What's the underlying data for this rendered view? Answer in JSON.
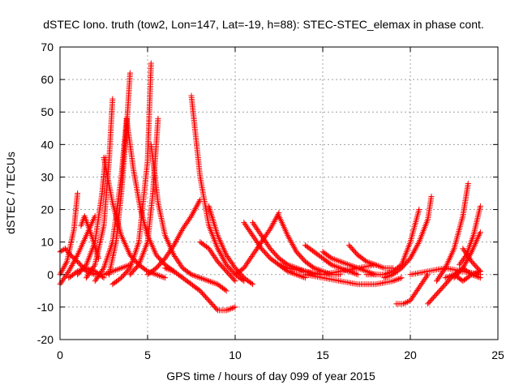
{
  "chart_data": {
    "type": "scatter",
    "title": "dSTEC Iono. truth (tow2, Lon=147, Lat=-19, h=88): STEC-STEC_elemax in phase cont.",
    "xlabel": "GPS time / hours of day 099 of year 2015",
    "ylabel": "dSTEC  / TECUs",
    "xlim": [
      0,
      25
    ],
    "ylim": [
      -20,
      70
    ],
    "xticks": [
      0,
      5,
      10,
      15,
      20,
      25
    ],
    "yticks": [
      -20,
      -10,
      0,
      10,
      20,
      30,
      40,
      50,
      60,
      70
    ],
    "grid": true,
    "legend": "none",
    "marker": "plus",
    "color": "#ff0000",
    "series": [
      {
        "x": [
          0.0,
          0.4,
          0.8,
          1.0
        ],
        "y": [
          0,
          4,
          14,
          25
        ]
      },
      {
        "x": [
          0.0,
          0.3,
          0.6,
          1.0,
          1.5,
          2.0,
          2.5,
          3.0,
          3.5,
          4.0
        ],
        "y": [
          7,
          8,
          6,
          4,
          1,
          0,
          0,
          1,
          2,
          3
        ]
      },
      {
        "x": [
          0.0,
          0.5,
          1.0,
          1.5,
          2.0
        ],
        "y": [
          -3,
          1,
          6,
          12,
          18
        ]
      },
      {
        "x": [
          0.5,
          1.0,
          1.5,
          2.0,
          2.5
        ],
        "y": [
          -1,
          1,
          2,
          1,
          -1
        ]
      },
      {
        "x": [
          1.2,
          1.4,
          1.8,
          2.2
        ],
        "y": [
          15,
          18,
          12,
          5
        ]
      },
      {
        "x": [
          1.0,
          1.5,
          2.0,
          2.4,
          2.6
        ],
        "y": [
          0,
          3,
          10,
          25,
          36
        ]
      },
      {
        "x": [
          1.5,
          2.0,
          2.5,
          2.8,
          3.0
        ],
        "y": [
          -1,
          3,
          15,
          35,
          54
        ]
      },
      {
        "x": [
          2.5,
          3.0,
          3.5,
          4.0,
          4.5,
          5.0,
          5.5,
          6.0
        ],
        "y": [
          36,
          22,
          12,
          6,
          3,
          1,
          0,
          -1
        ]
      },
      {
        "x": [
          2.8,
          3.2,
          3.5,
          3.8,
          4.0
        ],
        "y": [
          0,
          10,
          25,
          45,
          62
        ]
      },
      {
        "x": [
          2.0,
          2.5,
          3.0,
          3.5,
          3.8
        ],
        "y": [
          -2,
          2,
          10,
          30,
          48
        ]
      },
      {
        "x": [
          3.8,
          4.2,
          4.6,
          5.0,
          5.5,
          6.0,
          6.5
        ],
        "y": [
          48,
          32,
          20,
          12,
          6,
          3,
          1
        ]
      },
      {
        "x": [
          3.0,
          3.5,
          4.0,
          4.5,
          5.0,
          5.2
        ],
        "y": [
          -3,
          -1,
          2,
          10,
          35,
          65
        ]
      },
      {
        "x": [
          4.0,
          4.5,
          5.0,
          5.3,
          5.6
        ],
        "y": [
          0,
          3,
          10,
          25,
          48
        ]
      },
      {
        "x": [
          5.2,
          5.6,
          6.0,
          6.5,
          7.0,
          7.5,
          8.0,
          8.5,
          9.0,
          9.5
        ],
        "y": [
          40,
          22,
          12,
          6,
          2,
          0,
          -1,
          -2,
          -3,
          -5
        ]
      },
      {
        "x": [
          5.0,
          5.5,
          6.0,
          6.5,
          7.0,
          7.5,
          8.0
        ],
        "y": [
          0,
          2,
          5,
          9,
          14,
          18,
          23
        ]
      },
      {
        "x": [
          6.0,
          6.5,
          7.0,
          7.5,
          8.0,
          8.5,
          9.0,
          9.5,
          10.0
        ],
        "y": [
          2,
          1,
          -1,
          -3,
          -5,
          -8,
          -11,
          -11,
          -10
        ]
      },
      {
        "x": [
          7.5,
          8.0,
          8.5,
          9.0,
          9.5,
          10.0,
          10.5
        ],
        "y": [
          55,
          30,
          15,
          8,
          3,
          0,
          -2
        ]
      },
      {
        "x": [
          8.0,
          8.5,
          9.0,
          9.5,
          10.0
        ],
        "y": [
          10,
          8,
          4,
          1,
          -2
        ]
      },
      {
        "x": [
          8.5,
          9.0,
          9.5,
          10.0,
          10.5,
          11.0
        ],
        "y": [
          21,
          12,
          6,
          2,
          -1,
          -3
        ]
      },
      {
        "x": [
          10.0,
          10.5,
          11.0,
          11.5,
          12.0,
          12.5
        ],
        "y": [
          0,
          2,
          6,
          10,
          14,
          19
        ]
      },
      {
        "x": [
          10.5,
          11.0,
          11.5,
          12.0,
          12.5,
          13.0,
          13.5,
          14.0
        ],
        "y": [
          16,
          12,
          8,
          5,
          3,
          1,
          0,
          -1
        ]
      },
      {
        "x": [
          11.0,
          11.5,
          12.0,
          12.5,
          13.0,
          13.5,
          14.0,
          14.5,
          15.0
        ],
        "y": [
          16,
          12,
          8,
          5,
          3,
          2,
          1,
          0,
          0
        ]
      },
      {
        "x": [
          12.5,
          13.0,
          13.5,
          14.0,
          14.5,
          15.0,
          15.5,
          16.0
        ],
        "y": [
          18,
          12,
          7,
          4,
          2,
          1,
          0,
          0
        ]
      },
      {
        "x": [
          14.0,
          14.5,
          15.0,
          15.5,
          16.0,
          16.5,
          17.0
        ],
        "y": [
          9,
          7,
          5,
          3,
          2,
          1,
          0
        ]
      },
      {
        "x": [
          15.0,
          15.5,
          16.0,
          16.5,
          17.0,
          17.5,
          18.0
        ],
        "y": [
          7,
          5,
          4,
          3,
          2,
          1,
          0
        ]
      },
      {
        "x": [
          12.5,
          13.0,
          14.0,
          15.0,
          16.0,
          17.0,
          18.0
        ],
        "y": [
          3,
          2,
          1,
          0,
          1,
          2,
          3
        ]
      },
      {
        "x": [
          14.0,
          15.0,
          16.0,
          17.0,
          18.0,
          19.0,
          19.5
        ],
        "y": [
          0,
          -1,
          -2,
          -3,
          -3,
          -2,
          -1
        ]
      },
      {
        "x": [
          16.5,
          17.0,
          17.5,
          18.0,
          18.5,
          19.0
        ],
        "y": [
          9,
          6,
          4,
          3,
          2,
          2
        ]
      },
      {
        "x": [
          17.5,
          18.0,
          18.5,
          19.0,
          19.5,
          20.0,
          20.5
        ],
        "y": [
          0,
          0,
          0,
          1,
          3,
          10,
          20
        ]
      },
      {
        "x": [
          18.5,
          19.0,
          19.5,
          20.0,
          20.5,
          21.0,
          21.2
        ],
        "y": [
          -1,
          0,
          2,
          5,
          10,
          17,
          24
        ]
      },
      {
        "x": [
          19.2,
          19.6,
          20.0,
          20.5,
          21.0
        ],
        "y": [
          -9,
          -9,
          -8,
          -4,
          0
        ]
      },
      {
        "x": [
          20.0,
          21.0,
          22.0,
          23.0,
          24.0
        ],
        "y": [
          0,
          1,
          2,
          1,
          0
        ]
      },
      {
        "x": [
          21.0,
          21.5,
          22.0,
          22.5,
          23.0,
          23.5,
          24.0
        ],
        "y": [
          -9,
          -6,
          -3,
          0,
          2,
          0,
          -1
        ]
      },
      {
        "x": [
          21.5,
          22.0,
          22.5,
          23.0,
          23.3
        ],
        "y": [
          -2,
          2,
          8,
          18,
          28
        ]
      },
      {
        "x": [
          22.5,
          23.0,
          23.5,
          24.0
        ],
        "y": [
          -1,
          2,
          7,
          13
        ]
      },
      {
        "x": [
          22.0,
          22.5,
          23.0,
          23.5,
          24.0
        ],
        "y": [
          -1,
          0,
          -2,
          0,
          1
        ]
      },
      {
        "x": [
          23.0,
          23.5,
          24.0
        ],
        "y": [
          8,
          4,
          1
        ]
      },
      {
        "x": [
          22.8,
          23.2,
          23.6,
          24.0
        ],
        "y": [
          3,
          6,
          12,
          21
        ]
      }
    ]
  }
}
